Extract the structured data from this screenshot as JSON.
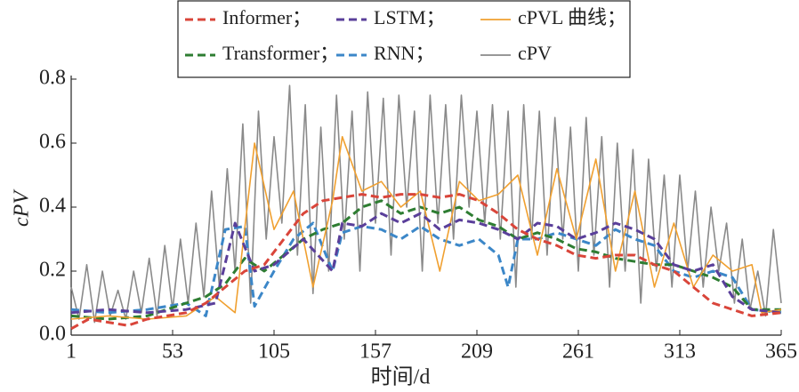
{
  "chart_data": {
    "type": "line",
    "xlabel": "时间/d",
    "ylabel": "cPV",
    "xlim": [
      1,
      365
    ],
    "xticks": [
      1,
      53,
      105,
      157,
      209,
      261,
      313,
      365
    ],
    "ylim": [
      0,
      0.8
    ],
    "yticks": [
      {
        "value": 0,
        "label": "0.0"
      },
      0.2,
      0.4,
      0.6,
      0.8
    ],
    "series": [
      {
        "name": "Informer；",
        "color": "#d9453a",
        "dashed": true,
        "x": [
          1,
          10,
          20,
          30,
          40,
          50,
          60,
          70,
          80,
          90,
          100,
          110,
          120,
          130,
          140,
          150,
          160,
          170,
          180,
          190,
          200,
          210,
          220,
          230,
          240,
          250,
          260,
          270,
          280,
          290,
          300,
          310,
          320,
          330,
          340,
          350,
          365
        ],
        "values": [
          0.02,
          0.05,
          0.04,
          0.03,
          0.05,
          0.06,
          0.07,
          0.1,
          0.15,
          0.2,
          0.22,
          0.3,
          0.38,
          0.42,
          0.43,
          0.44,
          0.43,
          0.44,
          0.44,
          0.43,
          0.44,
          0.42,
          0.38,
          0.33,
          0.3,
          0.28,
          0.25,
          0.24,
          0.25,
          0.25,
          0.22,
          0.2,
          0.15,
          0.1,
          0.08,
          0.06,
          0.07
        ]
      },
      {
        "name": "LSTM；",
        "color": "#5a3f9a",
        "dashed": true,
        "x": [
          1,
          20,
          40,
          60,
          75,
          85,
          95,
          105,
          120,
          135,
          140,
          150,
          160,
          170,
          180,
          190,
          200,
          210,
          220,
          230,
          240,
          250,
          260,
          270,
          280,
          290,
          300,
          310,
          320,
          330,
          340,
          350,
          365
        ],
        "values": [
          0.07,
          0.08,
          0.07,
          0.08,
          0.1,
          0.35,
          0.2,
          0.22,
          0.3,
          0.2,
          0.35,
          0.34,
          0.38,
          0.35,
          0.38,
          0.33,
          0.36,
          0.35,
          0.33,
          0.3,
          0.35,
          0.34,
          0.3,
          0.32,
          0.35,
          0.33,
          0.3,
          0.22,
          0.2,
          0.22,
          0.12,
          0.08,
          0.07
        ]
      },
      {
        "name": "cPVL 曲线；",
        "color": "#f0a030",
        "dashed": false,
        "x": [
          1,
          20,
          40,
          60,
          75,
          85,
          95,
          105,
          115,
          125,
          135,
          140,
          150,
          160,
          170,
          180,
          190,
          200,
          210,
          220,
          230,
          240,
          250,
          260,
          270,
          280,
          290,
          300,
          310,
          320,
          330,
          340,
          350,
          355,
          365
        ],
        "values": [
          0.05,
          0.06,
          0.05,
          0.06,
          0.12,
          0.07,
          0.6,
          0.33,
          0.45,
          0.15,
          0.42,
          0.62,
          0.45,
          0.48,
          0.4,
          0.45,
          0.2,
          0.48,
          0.42,
          0.44,
          0.5,
          0.25,
          0.52,
          0.3,
          0.55,
          0.2,
          0.45,
          0.15,
          0.35,
          0.15,
          0.25,
          0.2,
          0.22,
          0.07,
          0.08
        ]
      },
      {
        "name": "Transformer；",
        "color": "#2e7d32",
        "dashed": true,
        "x": [
          1,
          20,
          40,
          60,
          70,
          80,
          90,
          100,
          110,
          120,
          130,
          140,
          150,
          160,
          170,
          180,
          190,
          200,
          210,
          220,
          230,
          240,
          250,
          260,
          270,
          280,
          290,
          300,
          310,
          320,
          330,
          340,
          350,
          365
        ],
        "values": [
          0.06,
          0.05,
          0.06,
          0.1,
          0.12,
          0.16,
          0.24,
          0.2,
          0.25,
          0.3,
          0.33,
          0.35,
          0.4,
          0.42,
          0.38,
          0.4,
          0.38,
          0.4,
          0.36,
          0.34,
          0.3,
          0.32,
          0.3,
          0.27,
          0.26,
          0.24,
          0.23,
          0.22,
          0.22,
          0.2,
          0.18,
          0.15,
          0.08,
          0.08
        ]
      },
      {
        "name": "RNN；",
        "color": "#3c87c8",
        "dashed": true,
        "x": [
          1,
          20,
          40,
          60,
          70,
          80,
          90,
          95,
          105,
          115,
          125,
          135,
          140,
          150,
          160,
          170,
          180,
          190,
          200,
          210,
          220,
          225,
          230,
          240,
          250,
          260,
          270,
          280,
          290,
          300,
          310,
          320,
          330,
          340,
          350,
          365
        ],
        "values": [
          0.08,
          0.07,
          0.08,
          0.1,
          0.06,
          0.33,
          0.34,
          0.09,
          0.2,
          0.3,
          0.35,
          0.2,
          0.32,
          0.34,
          0.33,
          0.3,
          0.34,
          0.3,
          0.28,
          0.3,
          0.25,
          0.15,
          0.3,
          0.3,
          0.32,
          0.3,
          0.28,
          0.33,
          0.3,
          0.28,
          0.2,
          0.18,
          0.2,
          0.18,
          0.08,
          0.07
        ]
      },
      {
        "name": "cPV",
        "color": "#8a8a8a",
        "dashed": false,
        "x": [
          1,
          5,
          9,
          13,
          17,
          21,
          25,
          29,
          33,
          37,
          41,
          45,
          49,
          53,
          57,
          61,
          65,
          69,
          73,
          77,
          81,
          85,
          89,
          93,
          97,
          101,
          105,
          109,
          113,
          117,
          121,
          125,
          129,
          133,
          137,
          141,
          145,
          149,
          153,
          157,
          161,
          165,
          169,
          173,
          177,
          181,
          185,
          189,
          193,
          197,
          201,
          205,
          209,
          213,
          217,
          221,
          225,
          229,
          233,
          237,
          241,
          245,
          249,
          253,
          257,
          261,
          265,
          269,
          273,
          277,
          281,
          285,
          289,
          293,
          297,
          301,
          305,
          309,
          313,
          317,
          321,
          325,
          329,
          333,
          337,
          341,
          345,
          349,
          353,
          357,
          361,
          365
        ],
        "values": [
          0.15,
          0.05,
          0.22,
          0.04,
          0.2,
          0.06,
          0.14,
          0.05,
          0.2,
          0.07,
          0.24,
          0.06,
          0.28,
          0.08,
          0.3,
          0.1,
          0.35,
          0.12,
          0.45,
          0.15,
          0.52,
          0.2,
          0.66,
          0.1,
          0.7,
          0.3,
          0.62,
          0.35,
          0.78,
          0.25,
          0.72,
          0.13,
          0.65,
          0.2,
          0.75,
          0.3,
          0.7,
          0.2,
          0.76,
          0.35,
          0.74,
          0.25,
          0.75,
          0.4,
          0.7,
          0.2,
          0.75,
          0.35,
          0.72,
          0.3,
          0.75,
          0.4,
          0.7,
          0.35,
          0.72,
          0.3,
          0.7,
          0.15,
          0.72,
          0.3,
          0.7,
          0.25,
          0.68,
          0.3,
          0.65,
          0.2,
          0.68,
          0.25,
          0.62,
          0.15,
          0.6,
          0.2,
          0.58,
          0.1,
          0.55,
          0.2,
          0.5,
          0.15,
          0.5,
          0.2,
          0.45,
          0.15,
          0.4,
          0.2,
          0.35,
          0.1,
          0.3,
          0.08,
          0.2,
          0.06,
          0.33,
          0.1
        ]
      }
    ]
  }
}
